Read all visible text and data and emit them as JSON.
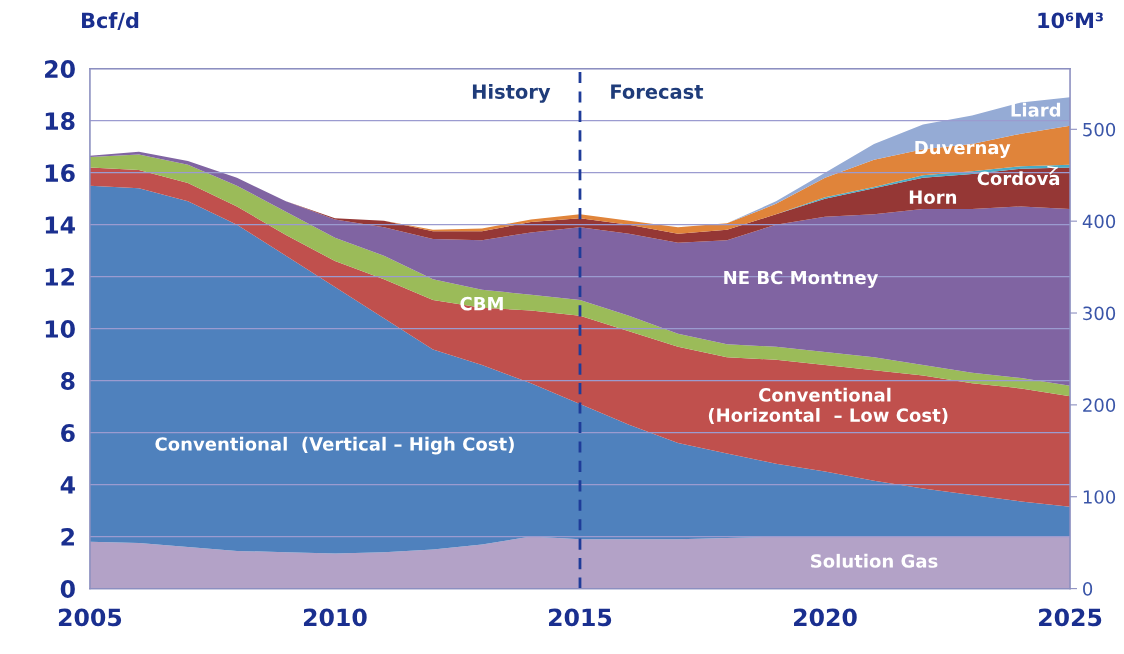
{
  "chart_data": {
    "type": "area",
    "stacked": true,
    "x": [
      2005,
      2006,
      2007,
      2008,
      2009,
      2010,
      2011,
      2012,
      2013,
      2014,
      2015,
      2016,
      2017,
      2018,
      2019,
      2020,
      2021,
      2022,
      2023,
      2024,
      2025
    ],
    "series": [
      {
        "name": "Solution Gas",
        "color": "#b3a2c7",
        "values": [
          1.8,
          1.75,
          1.6,
          1.45,
          1.4,
          1.35,
          1.4,
          1.5,
          1.7,
          2.0,
          1.9,
          1.9,
          1.9,
          1.95,
          2.0,
          2.0,
          2.0,
          2.0,
          2.0,
          2.0,
          2.0
        ]
      },
      {
        "name": "Conventional  (Vertical – High Cost)",
        "color": "#4f81bd",
        "values": [
          13.7,
          13.65,
          13.3,
          12.55,
          11.4,
          10.25,
          9.0,
          7.7,
          6.9,
          5.9,
          5.2,
          4.4,
          3.7,
          3.25,
          2.8,
          2.5,
          2.15,
          1.85,
          1.6,
          1.35,
          1.15
        ]
      },
      {
        "name": "Conventional\n (Horizontal  – Low Cost)",
        "color": "#c0504d",
        "values": [
          0.7,
          0.7,
          0.7,
          0.7,
          0.8,
          1.0,
          1.5,
          1.9,
          2.2,
          2.8,
          3.4,
          3.6,
          3.7,
          3.7,
          4.0,
          4.1,
          4.25,
          4.35,
          4.3,
          4.35,
          4.25
        ]
      },
      {
        "name": "CBM",
        "color": "#9bbb59",
        "values": [
          0.4,
          0.6,
          0.7,
          0.8,
          0.9,
          0.9,
          0.9,
          0.8,
          0.7,
          0.6,
          0.6,
          0.6,
          0.5,
          0.5,
          0.5,
          0.5,
          0.5,
          0.4,
          0.4,
          0.4,
          0.4
        ]
      },
      {
        "name": "NE BC Montney",
        "color": "#8064a2",
        "values": [
          0.05,
          0.1,
          0.15,
          0.3,
          0.4,
          0.7,
          1.1,
          1.55,
          1.9,
          2.4,
          2.8,
          3.15,
          3.5,
          4.0,
          4.7,
          5.2,
          5.5,
          6.0,
          6.3,
          6.6,
          6.8
        ]
      },
      {
        "name": "Horn",
        "color": "#953735",
        "values": [
          0,
          0,
          0,
          0,
          0,
          0.05,
          0.25,
          0.3,
          0.35,
          0.4,
          0.35,
          0.35,
          0.35,
          0.4,
          0.4,
          0.7,
          1.0,
          1.2,
          1.35,
          1.45,
          1.6
        ]
      },
      {
        "name": "Cordova",
        "color": "#4bacc6",
        "values": [
          0,
          0,
          0,
          0,
          0,
          0,
          0,
          0,
          0,
          0,
          0,
          0,
          0,
          0,
          0,
          0.05,
          0.05,
          0.1,
          0.1,
          0.1,
          0.1
        ]
      },
      {
        "name": "Duvernay",
        "color": "#e0843a",
        "values": [
          0,
          0,
          0,
          0,
          0,
          0,
          0,
          0.05,
          0.1,
          0.1,
          0.15,
          0.15,
          0.25,
          0.25,
          0.4,
          0.75,
          1.05,
          1.0,
          1.05,
          1.25,
          1.5
        ]
      },
      {
        "name": "Liard",
        "color": "#95abd5",
        "values": [
          0,
          0,
          0,
          0,
          0,
          0,
          0,
          0,
          0,
          0,
          0,
          0,
          0,
          0,
          0.1,
          0.2,
          0.6,
          0.95,
          1.1,
          1.2,
          1.1
        ]
      }
    ],
    "ylabel": "Bcf/d",
    "y2label": "10⁶M³",
    "xlim": [
      2005,
      2025
    ],
    "xticks": [
      2005,
      2010,
      2015,
      2020,
      2025
    ],
    "ylim": [
      0,
      20
    ],
    "yticks": [
      0,
      2,
      4,
      6,
      8,
      10,
      12,
      14,
      16,
      18,
      20
    ],
    "y2lim": [
      0,
      566
    ],
    "y2ticks": [
      0,
      100,
      200,
      300,
      400,
      500
    ],
    "ref_lines": [
      {
        "axis": "x",
        "value": 2015,
        "color": "#1f3c99",
        "line_style": "dashed"
      }
    ],
    "annotations": [
      "History",
      "Forecast"
    ],
    "grid": "y",
    "legend": false
  }
}
